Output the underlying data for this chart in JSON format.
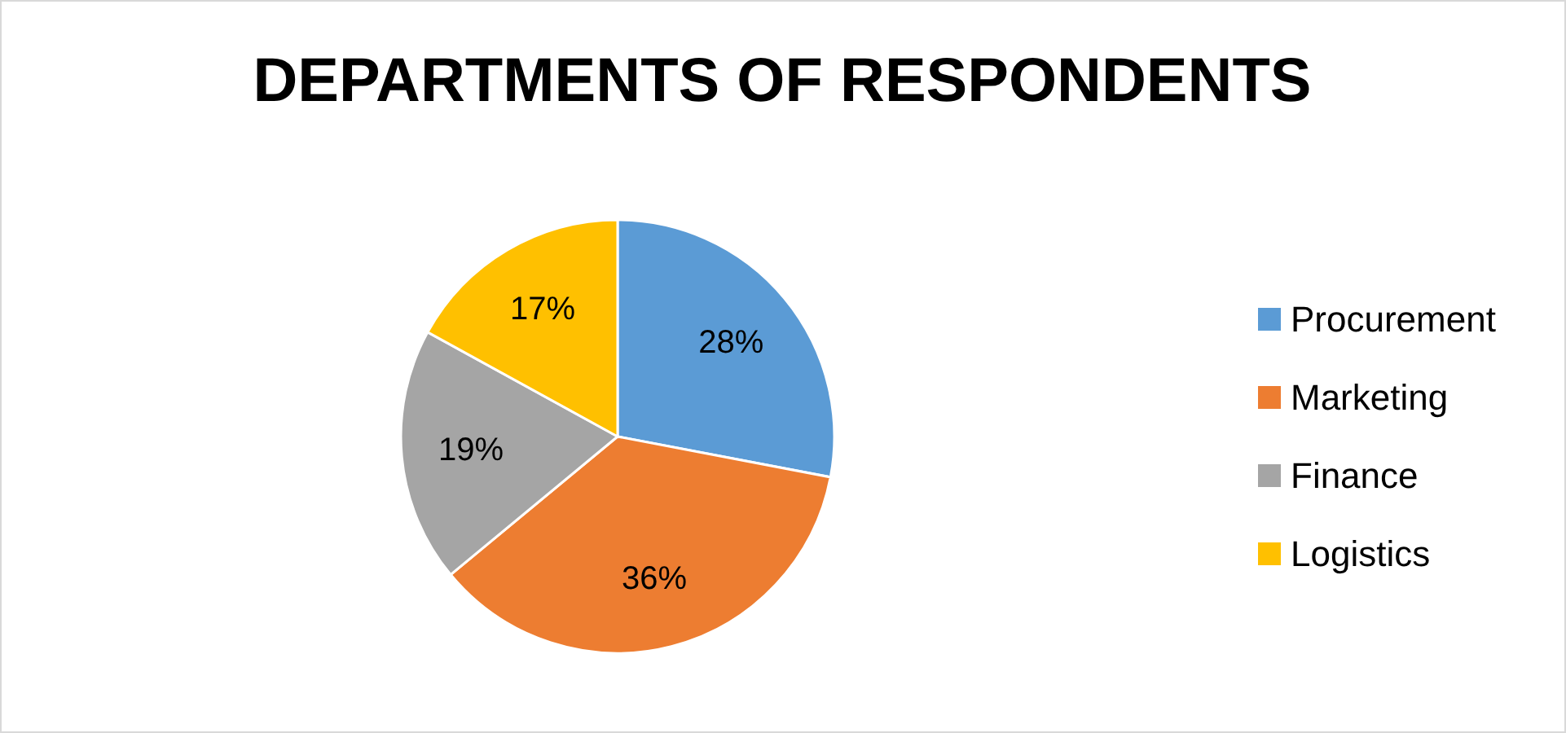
{
  "chart_data": {
    "type": "pie",
    "title": "DEPARTMENTS OF RESPONDENTS",
    "categories": [
      "Procurement",
      "Marketing",
      "Finance",
      "Logistics"
    ],
    "values": [
      28,
      36,
      19,
      17
    ],
    "colors": [
      "#5b9bd5",
      "#ed7d31",
      "#a5a5a5",
      "#ffc000"
    ],
    "value_labels": [
      "28%",
      "36%",
      "19%",
      "17%"
    ],
    "legend": "right"
  }
}
